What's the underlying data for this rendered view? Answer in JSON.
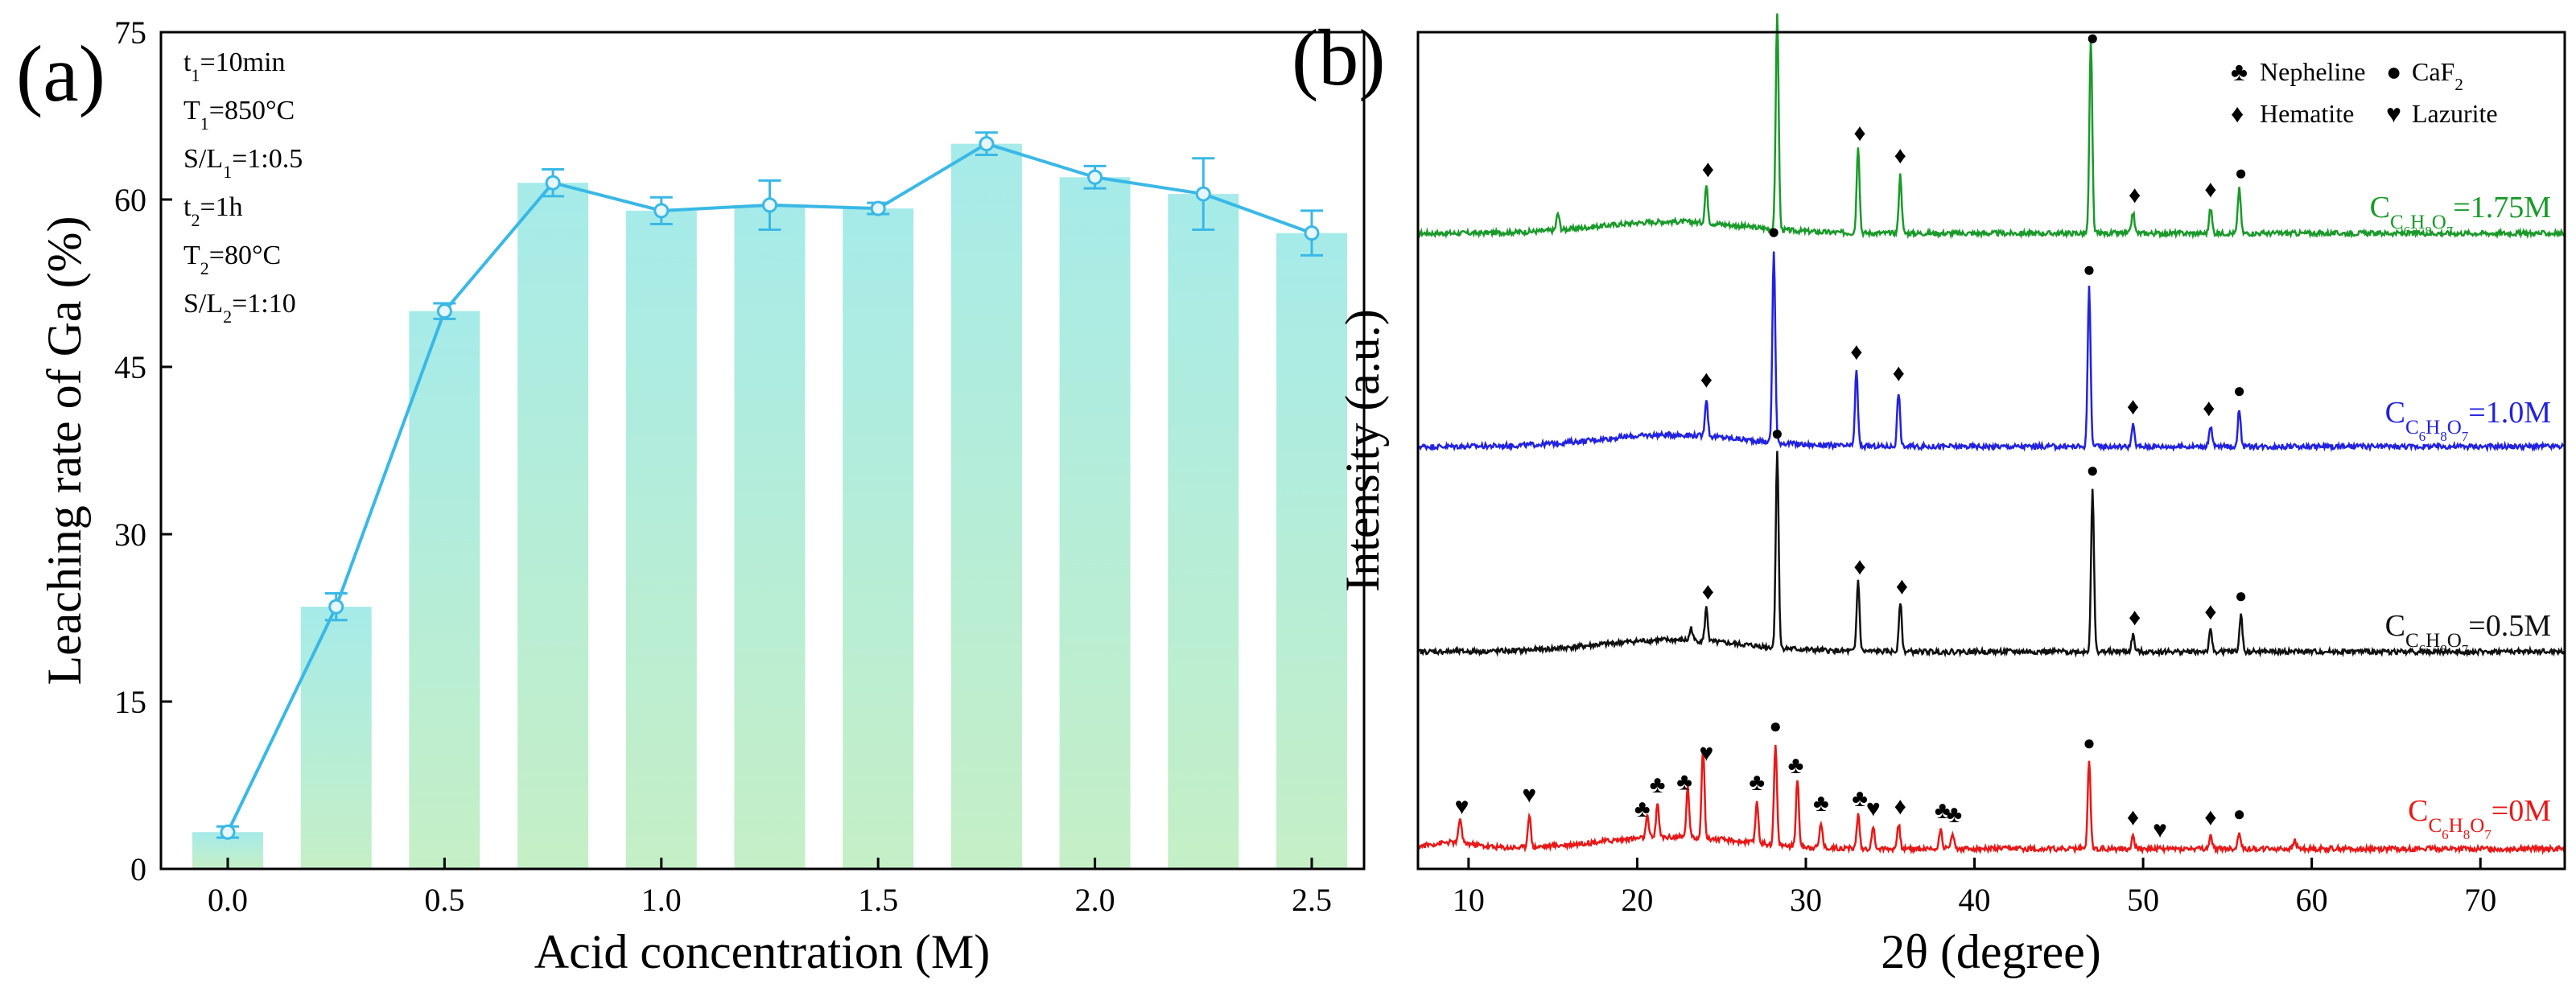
{
  "chart_data": [
    {
      "type": "bar",
      "panel_label": "(a)",
      "xlabel": "Acid concentration (M)",
      "ylabel": "Leaching rate of Ga (%)",
      "ylim": [
        0,
        75
      ],
      "yticks": [
        0,
        15,
        30,
        45,
        60,
        75
      ],
      "xticks": [
        0.0,
        0.5,
        1.0,
        1.5,
        2.0,
        2.5
      ],
      "xtick_labels": [
        "0.0",
        "0.5",
        "1.0",
        "1.5",
        "2.0",
        "2.5"
      ],
      "ytick_labels": [
        "0",
        "15",
        "30",
        "45",
        "60",
        "75"
      ],
      "x": [
        0,
        0.25,
        0.5,
        0.75,
        1.0,
        1.25,
        1.5,
        1.75,
        2.0,
        2.25,
        2.5
      ],
      "values": [
        3.3,
        23.5,
        50.0,
        61.5,
        59.0,
        59.5,
        59.2,
        65.0,
        62.0,
        60.5,
        57.0
      ],
      "errors": [
        0.5,
        1.2,
        0.7,
        1.2,
        1.2,
        2.2,
        0.5,
        1.0,
        1.0,
        3.2,
        2.0
      ],
      "overlay": "line-with-error-bars",
      "line_color": "#3ab8e6",
      "bar_color_top": "#a8ece8",
      "bar_color_bottom": "#c2eec7",
      "annotations": [
        "t1=10min",
        "T1=850°C",
        "S/L1=1:0.5",
        "t2=1h",
        "T2=80°C",
        "S/L2=1:10"
      ]
    },
    {
      "type": "line",
      "panel_label": "(b)",
      "xlabel": "2θ (degree)",
      "ylabel": "Intensity (a.u.)",
      "xlim": [
        7,
        75
      ],
      "xticks": [
        10,
        20,
        30,
        40,
        50,
        60,
        70
      ],
      "xtick_labels": [
        "10",
        "20",
        "30",
        "40",
        "50",
        "60",
        "70"
      ],
      "legend": [
        {
          "symbol": "♣",
          "name": "Nepheline"
        },
        {
          "symbol": "●",
          "name": "CaF2"
        },
        {
          "symbol": "♦",
          "name": "Hematite"
        },
        {
          "symbol": "♥",
          "name": "Lazurite"
        }
      ],
      "series": [
        {
          "name": "C6H8O7=1.75M",
          "label_main": "C",
          "label_sub": "C6H8O7",
          "label_value": "=1.75M",
          "color": "#1a9a2a",
          "baseline": 0.0,
          "peaks": [
            [
              15.3,
              0.04
            ],
            [
              24.1,
              0.09
            ],
            [
              28.3,
              0.52
            ],
            [
              33.1,
              0.21
            ],
            [
              35.6,
              0.14
            ],
            [
              46.9,
              0.46
            ],
            [
              49.4,
              0.05
            ],
            [
              54.0,
              0.06
            ],
            [
              55.7,
              0.11
            ]
          ],
          "markers": [
            {
              "symbol": "♦",
              "x": 24.2
            },
            {
              "symbol": "●",
              "x": 28.3
            },
            {
              "symbol": "♦",
              "x": 33.2
            },
            {
              "symbol": "♦",
              "x": 35.6
            },
            {
              "symbol": "●",
              "x": 47.0
            },
            {
              "symbol": "♦",
              "x": 49.5
            },
            {
              "symbol": "♦",
              "x": 54.0
            },
            {
              "symbol": "●",
              "x": 55.8
            }
          ]
        },
        {
          "name": "C6H8O7=1.0M",
          "label_main": "C",
          "label_sub": "C6H8O7",
          "label_value": "=1.0M",
          "color": "#2222e0",
          "peaks": [
            [
              24.1,
              0.09
            ],
            [
              28.1,
              0.46
            ],
            [
              33.0,
              0.18
            ],
            [
              35.5,
              0.13
            ],
            [
              46.8,
              0.38
            ],
            [
              49.4,
              0.05
            ],
            [
              54.0,
              0.05
            ],
            [
              55.7,
              0.09
            ]
          ],
          "markers": [
            {
              "symbol": "♦",
              "x": 24.1
            },
            {
              "symbol": "●",
              "x": 28.1
            },
            {
              "symbol": "♦",
              "x": 33.0
            },
            {
              "symbol": "♦",
              "x": 35.5
            },
            {
              "symbol": "●",
              "x": 46.8
            },
            {
              "symbol": "♦",
              "x": 49.4
            },
            {
              "symbol": "♦",
              "x": 53.9
            },
            {
              "symbol": "●",
              "x": 55.7
            }
          ]
        },
        {
          "name": "C6H8O7=0.5M",
          "label_main": "C",
          "label_sub": "C6H8O7",
          "label_value": "=0.5M",
          "color": "#111111",
          "peaks": [
            [
              23.2,
              0.03
            ],
            [
              24.1,
              0.08
            ],
            [
              28.3,
              0.47
            ],
            [
              33.1,
              0.17
            ],
            [
              35.6,
              0.12
            ],
            [
              47.0,
              0.39
            ],
            [
              49.4,
              0.04
            ],
            [
              54.0,
              0.05
            ],
            [
              55.8,
              0.09
            ]
          ],
          "markers": [
            {
              "symbol": "♦",
              "x": 24.2
            },
            {
              "symbol": "●",
              "x": 28.3
            },
            {
              "symbol": "♦",
              "x": 33.2
            },
            {
              "symbol": "♦",
              "x": 35.7
            },
            {
              "symbol": "●",
              "x": 47.0
            },
            {
              "symbol": "♦",
              "x": 49.5
            },
            {
              "symbol": "♦",
              "x": 54.0
            },
            {
              "symbol": "●",
              "x": 55.8
            }
          ]
        },
        {
          "name": "C6H8O7=0M",
          "label_main": "C",
          "label_sub": "C6H8O7",
          "label_value": "=0M",
          "color": "#e81818",
          "peaks": [
            [
              9.5,
              0.06
            ],
            [
              13.6,
              0.08
            ],
            [
              20.6,
              0.05
            ],
            [
              21.2,
              0.08
            ],
            [
              23.0,
              0.12
            ],
            [
              23.9,
              0.22
            ],
            [
              27.1,
              0.1
            ],
            [
              28.2,
              0.24
            ],
            [
              29.5,
              0.16
            ],
            [
              30.9,
              0.06
            ],
            [
              33.1,
              0.08
            ],
            [
              34.0,
              0.05
            ],
            [
              35.5,
              0.06
            ],
            [
              38.0,
              0.05
            ],
            [
              38.7,
              0.04
            ],
            [
              46.8,
              0.21
            ],
            [
              49.4,
              0.03
            ],
            [
              54.0,
              0.03
            ],
            [
              55.7,
              0.04
            ],
            [
              59.0,
              0.02
            ]
          ],
          "markers": [
            {
              "symbol": "♥",
              "x": 9.6
            },
            {
              "symbol": "♥",
              "x": 13.6
            },
            {
              "symbol": "♣",
              "x": 20.3
            },
            {
              "symbol": "♣",
              "x": 21.2
            },
            {
              "symbol": "♣",
              "x": 22.8
            },
            {
              "symbol": "♥",
              "x": 24.1
            },
            {
              "symbol": "♣",
              "x": 27.1
            },
            {
              "symbol": "●",
              "x": 28.2
            },
            {
              "symbol": "♣",
              "x": 29.4
            },
            {
              "symbol": "♣",
              "x": 30.9
            },
            {
              "symbol": "♣",
              "x": 33.2
            },
            {
              "symbol": "♥",
              "x": 34.0
            },
            {
              "symbol": "♦",
              "x": 35.6
            },
            {
              "symbol": "♣",
              "x": 38.1
            },
            {
              "symbol": "♣",
              "x": 38.8
            },
            {
              "symbol": "●",
              "x": 46.8
            },
            {
              "symbol": "♦",
              "x": 49.4
            },
            {
              "symbol": "♥",
              "x": 51.0
            },
            {
              "symbol": "♦",
              "x": 54.0
            },
            {
              "symbol": "●",
              "x": 55.7
            }
          ]
        }
      ]
    }
  ]
}
